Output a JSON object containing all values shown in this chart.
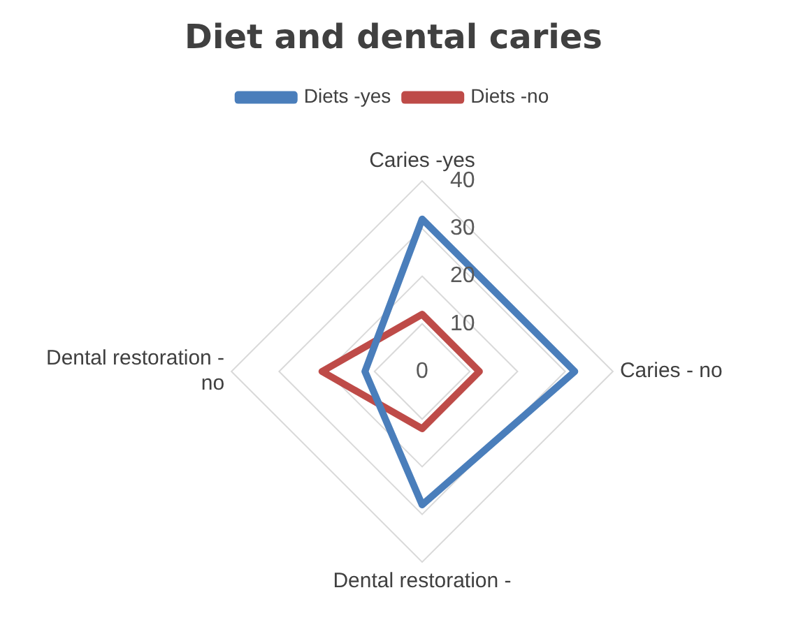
{
  "chart_data": {
    "type": "radar",
    "title": "Diet and dental caries",
    "categories": [
      "Caries -yes",
      "Caries - no",
      "Dental restoration -",
      "Dental restoration - no"
    ],
    "series": [
      {
        "name": "Diets -yes",
        "color": "#4a7ebb",
        "values": [
          32,
          32,
          28,
          12
        ]
      },
      {
        "name": "Diets -no",
        "color": "#be4b48",
        "values": [
          12,
          12,
          12,
          21
        ]
      }
    ],
    "ylim": [
      0,
      40
    ],
    "yticks": [
      0,
      10,
      20,
      30,
      40
    ],
    "grid": true,
    "legend": "top",
    "marker": "none"
  }
}
